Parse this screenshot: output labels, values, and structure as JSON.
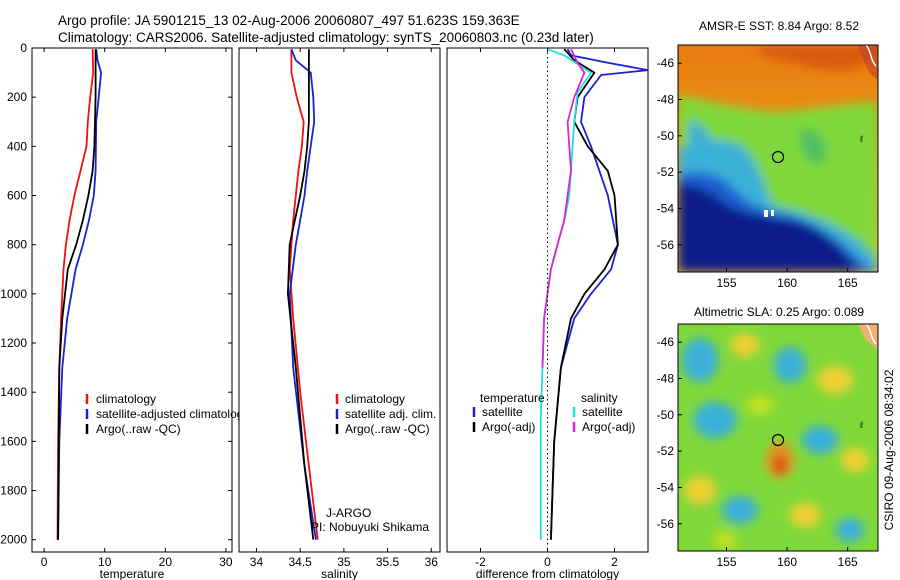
{
  "header": {
    "line1": "Argo profile: JA 5901215_13 02-Aug-2006 20060807_497 51.623S 159.363E",
    "line2": "Climatology: CARS2006. Satellite-adjusted climatology: synTS_20060803.nc (0.23d later)"
  },
  "side_text": "CSIRO 09-Aug-2006 08:34:02",
  "colors": {
    "climatology": "#ee1111",
    "satellite": "#1a22cc",
    "argo": "#000000",
    "salinity_sat": "#22dddd",
    "salinity_argo": "#dd22dd"
  },
  "chart_data": [
    {
      "type": "line",
      "xlabel": "temperature",
      "xlim": [
        -2,
        31
      ],
      "ylim": [
        2050,
        0
      ],
      "xticks": [
        0,
        10,
        20,
        30
      ],
      "yticks": [
        0,
        200,
        400,
        600,
        800,
        1000,
        1200,
        1400,
        1600,
        1800,
        2000
      ],
      "legend": [
        "climatology",
        "satellite-adjusted climatology",
        "Argo(..raw -QC)"
      ],
      "series": [
        {
          "name": "climatology",
          "color": "#ee1111",
          "x": [
            8.0,
            8.1,
            7.6,
            7.2,
            7.0,
            6.0,
            5.0,
            4.2,
            3.6,
            3.2,
            2.8,
            2.5,
            2.3,
            2.2
          ],
          "y": [
            5,
            100,
            200,
            300,
            400,
            500,
            600,
            700,
            800,
            900,
            1100,
            1300,
            1600,
            2000
          ]
        },
        {
          "name": "satellite-adjusted climatology",
          "color": "#1a22cc",
          "x": [
            8.6,
            8.8,
            9.4,
            9.0,
            8.6,
            8.5,
            8.2,
            7.4,
            6.4,
            5.2,
            3.8,
            3.0,
            2.5,
            2.3
          ],
          "y": [
            5,
            50,
            100,
            200,
            300,
            500,
            600,
            700,
            800,
            900,
            1100,
            1300,
            1600,
            2000
          ]
        },
        {
          "name": "Argo(..raw -QC)",
          "color": "#000000",
          "x": [
            8.5,
            8.5,
            8.5,
            8.4,
            8.3,
            8.0,
            7.3,
            6.4,
            5.3,
            3.9,
            3.0,
            2.5,
            2.3
          ],
          "y": [
            5,
            100,
            200,
            300,
            400,
            500,
            600,
            700,
            800,
            900,
            1100,
            1300,
            2000
          ]
        }
      ]
    },
    {
      "type": "line",
      "xlabel": "salinity",
      "xlim": [
        33.8,
        36.1
      ],
      "ylim": [
        2050,
        0
      ],
      "xticks": [
        34,
        34.5,
        35,
        35.5,
        36
      ],
      "legend": [
        "climatology",
        "satellite adj. clim.",
        "Argo(..raw -QC)"
      ],
      "annotation": [
        "J-ARGO",
        "PI: Nobuyuki Shikama"
      ],
      "series": [
        {
          "name": "climatology",
          "color": "#ee1111",
          "x": [
            34.4,
            34.4,
            34.46,
            34.54,
            34.52,
            34.48,
            34.45,
            34.42,
            34.4,
            34.38,
            34.42,
            34.5,
            34.6,
            34.7
          ],
          "y": [
            5,
            100,
            200,
            300,
            400,
            500,
            600,
            700,
            800,
            900,
            1100,
            1400,
            1700,
            2000
          ]
        },
        {
          "name": "satellite adj. clim.",
          "color": "#1a22cc",
          "x": [
            34.4,
            34.45,
            34.62,
            34.65,
            34.66,
            34.62,
            34.58,
            34.55,
            34.5,
            34.45,
            34.38,
            34.42,
            34.55,
            34.68
          ],
          "y": [
            5,
            50,
            100,
            200,
            300,
            400,
            500,
            600,
            700,
            800,
            1000,
            1300,
            1700,
            2000
          ]
        },
        {
          "name": "Argo(..raw -QC)",
          "color": "#000000",
          "x": [
            34.6,
            34.6,
            34.6,
            34.6,
            34.58,
            34.55,
            34.5,
            34.44,
            34.38,
            34.36,
            34.45,
            34.55,
            34.65
          ],
          "y": [
            5,
            100,
            200,
            300,
            400,
            500,
            600,
            700,
            800,
            1000,
            1300,
            1700,
            2000
          ]
        }
      ]
    },
    {
      "type": "line",
      "xlabel": "difference from climatology",
      "xlim": [
        -3,
        3.0
      ],
      "ylim": [
        2050,
        0
      ],
      "xticks": [
        -2,
        0,
        2
      ],
      "legend_groups": [
        {
          "title": "temperature",
          "items": [
            "satellite",
            "Argo(-adj)"
          ]
        },
        {
          "title": "salinity",
          "items": [
            "satellite",
            "Argo(-adj)"
          ]
        }
      ],
      "series": [
        {
          "name": "satellite",
          "group": "temperature",
          "color": "#1a22cc",
          "x": [
            0.6,
            0.7,
            1.8,
            3.0,
            1.6,
            1.1,
            1.0,
            1.3,
            1.8,
            2.1,
            1.9,
            1.3,
            0.8,
            0.4,
            0.2,
            0.1
          ],
          "y": [
            5,
            30,
            60,
            90,
            110,
            200,
            300,
            400,
            600,
            800,
            900,
            1000,
            1100,
            1300,
            1600,
            2000
          ]
        },
        {
          "name": "Argo(-adj)",
          "group": "temperature",
          "color": "#000000",
          "x": [
            0.5,
            0.8,
            1.4,
            0.9,
            0.8,
            1.2,
            1.8,
            2.0,
            2.1,
            1.7,
            1.1,
            0.7,
            0.4,
            0.2,
            0.1
          ],
          "y": [
            5,
            50,
            100,
            200,
            300,
            400,
            500,
            600,
            800,
            900,
            1000,
            1100,
            1300,
            1600,
            2000
          ]
        },
        {
          "name": "satellite",
          "group": "salinity",
          "color": "#22dddd",
          "x": [
            0.0,
            0.5,
            1.3,
            0.9,
            0.8,
            0.75,
            0.65,
            0.5,
            0.3,
            0.1,
            -0.1,
            -0.2,
            -0.2
          ],
          "y": [
            5,
            30,
            100,
            180,
            300,
            400,
            600,
            700,
            800,
            900,
            1100,
            1500,
            2000
          ]
        },
        {
          "name": "Argo(-adj)",
          "group": "salinity",
          "color": "#dd22dd",
          "x": [
            0.7,
            0.9,
            1.1,
            0.8,
            0.6,
            0.7,
            0.6,
            0.5,
            0.3,
            0.1,
            -0.1,
            -0.15
          ],
          "y": [
            5,
            60,
            100,
            200,
            300,
            500,
            600,
            700,
            800,
            900,
            1100,
            1300
          ]
        }
      ]
    },
    {
      "type": "heatmap",
      "title": "AMSR-E SST: 8.84  Argo: 8.52",
      "xlim": [
        151,
        167.5
      ],
      "ylim": [
        -57.5,
        -45
      ],
      "xticks": [
        155,
        160,
        165
      ],
      "yticks": [
        -46,
        -48,
        -50,
        -52,
        -54,
        -56
      ],
      "marker": {
        "lon": 159.363,
        "lat": -51.623
      }
    },
    {
      "type": "heatmap",
      "title": "Altimetric SLA: 0.25  Argo: 0.089",
      "xlim": [
        151,
        167.5
      ],
      "ylim": [
        -57.5,
        -45
      ],
      "xticks": [
        155,
        160,
        165
      ],
      "yticks": [
        -46,
        -48,
        -50,
        -52,
        -54,
        -56
      ],
      "marker": {
        "lon": 159.363,
        "lat": -51.623
      }
    }
  ]
}
